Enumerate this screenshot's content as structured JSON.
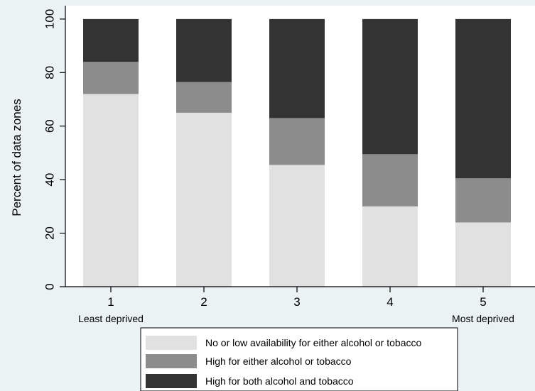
{
  "chart_data": {
    "type": "bar",
    "stacked": true,
    "title": "",
    "xlabel": "",
    "ylabel": "Percent of data zones",
    "ylim": [
      0,
      105
    ],
    "yticks": [
      0,
      20,
      40,
      60,
      80,
      100
    ],
    "categories": [
      "1",
      "2",
      "3",
      "4",
      "5"
    ],
    "category_sublabels": [
      "Least deprived",
      "",
      "",
      "",
      "Most deprived"
    ],
    "series": [
      {
        "name": "No or low availability for either alcohol or tobacco",
        "color": "#e1e1e1",
        "values": [
          72,
          65,
          45.5,
          30,
          24
        ]
      },
      {
        "name": "High for either alcohol or tobacco",
        "color": "#8c8c8c",
        "values": [
          12,
          11.5,
          17.5,
          19.5,
          16.5
        ]
      },
      {
        "name": "High for both alcohol and tobacco",
        "color": "#333333",
        "values": [
          16,
          23.5,
          37,
          50.5,
          59.5
        ]
      }
    ],
    "grid": false,
    "legend_position": "bottom",
    "background_color": "#eaf2f3",
    "plot_background_color": "#ffffff"
  }
}
